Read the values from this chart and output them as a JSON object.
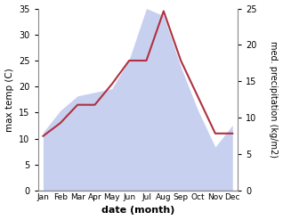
{
  "months": [
    "Jan",
    "Feb",
    "Mar",
    "Apr",
    "May",
    "Jun",
    "Jul",
    "Aug",
    "Sep",
    "Oct",
    "Nov",
    "Dec"
  ],
  "temperature": [
    10.5,
    13.0,
    16.5,
    16.5,
    20.5,
    25.0,
    25.0,
    34.5,
    25.0,
    18.0,
    11.0,
    11.0
  ],
  "precipitation": [
    8.0,
    11.0,
    13.0,
    13.5,
    14.0,
    18.0,
    25.0,
    24.0,
    17.0,
    11.0,
    6.0,
    9.0
  ],
  "temp_color": "#b03040",
  "precip_fill_color": "#c8d0f0",
  "precip_line_color": "#c8d0f0",
  "temp_ylim": [
    0,
    35
  ],
  "precip_ylim": [
    0,
    25
  ],
  "xlabel": "date (month)",
  "ylabel_left": "max temp (C)",
  "ylabel_right": "med. precipitation (kg/m2)",
  "temp_yticks": [
    0,
    5,
    10,
    15,
    20,
    25,
    30,
    35
  ],
  "precip_yticks": [
    0,
    5,
    10,
    15,
    20,
    25
  ],
  "background_color": "#ffffff",
  "linewidth": 1.5
}
